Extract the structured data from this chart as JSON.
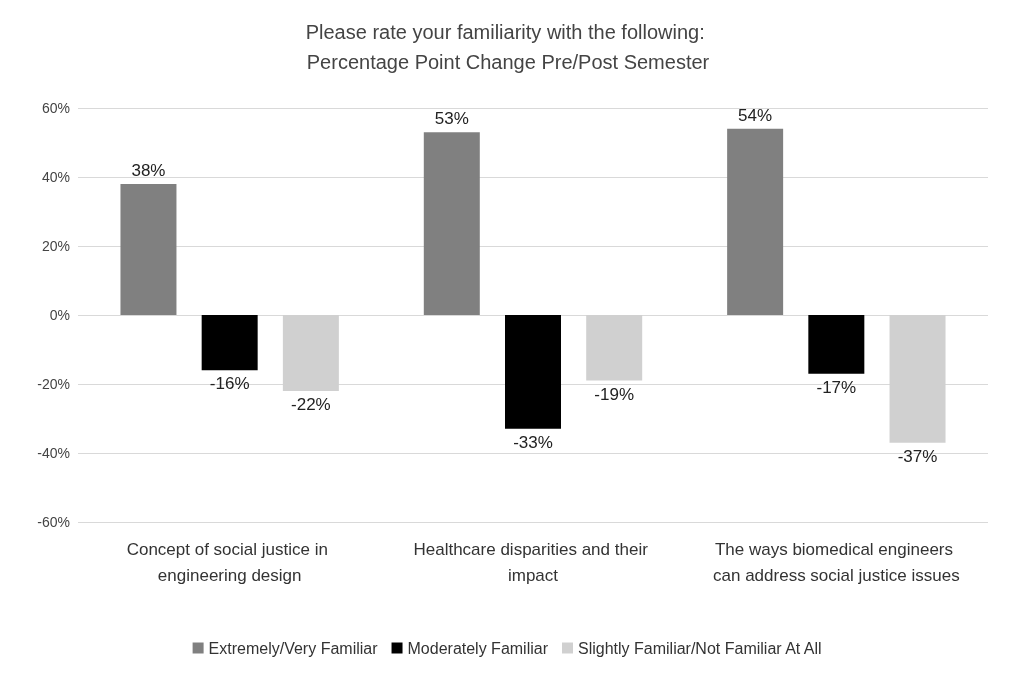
{
  "chart_data": {
    "type": "bar",
    "title": "Please rate your familiarity with the following: Percentage Point Change Pre/Post Semester",
    "categories": [
      "Concept of social justice in engineering design",
      "Healthcare disparities and their impact",
      "The ways biomedical engineers can address social justice issues"
    ],
    "series": [
      {
        "name": "Extremely/Very Familiar",
        "color": "#808080",
        "values": [
          38,
          53,
          54
        ],
        "value_labels": [
          "38%",
          "53%",
          "54%"
        ]
      },
      {
        "name": "Moderately Familiar",
        "color": "#000000",
        "values": [
          -16,
          -33,
          -17
        ],
        "value_labels": [
          "-16%",
          "-33%",
          "-17%"
        ]
      },
      {
        "name": "Slightly Familiar/Not Familiar At All",
        "color": "#d0d0d0",
        "values": [
          -22,
          -19,
          -37
        ],
        "value_labels": [
          "-22%",
          "-19%",
          "-37%"
        ]
      }
    ],
    "ylim": [
      -60,
      60
    ],
    "yticks": [
      {
        "value": -60,
        "label": "-60%"
      },
      {
        "value": -40,
        "label": "-40%"
      },
      {
        "value": -20,
        "label": "-20%"
      },
      {
        "value": 0,
        "label": "0%"
      },
      {
        "value": 20,
        "label": "20%"
      },
      {
        "value": 40,
        "label": "40%"
      },
      {
        "value": 60,
        "label": "60%"
      }
    ],
    "grid": "y",
    "legend": "bottom"
  }
}
